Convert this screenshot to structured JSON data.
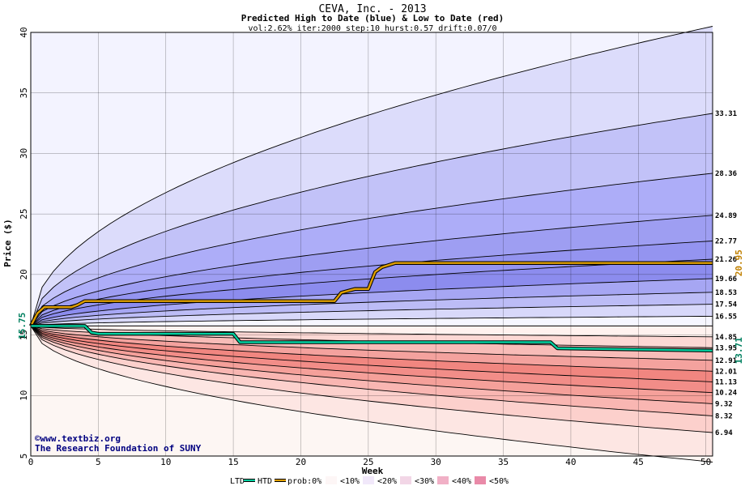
{
  "chart_data": {
    "type": "area",
    "title": "CEVA, Inc. - 2013",
    "subtitle": "Predicted High to Date (blue) &  Low to Date (red)",
    "params": "vol:2.62% iter:2000 step:10 hurst:0.57 drift:0.07/0",
    "xlabel": "Week",
    "ylabel": "Price ($)",
    "xlim": [
      0,
      50.5
    ],
    "ylim": [
      5,
      40
    ],
    "x_ticks": [
      0,
      5,
      10,
      15,
      20,
      25,
      30,
      35,
      40,
      45,
      50
    ],
    "y_ticks": [
      5,
      10,
      15,
      20,
      25,
      30,
      35,
      40
    ],
    "start_price": 15.75,
    "start_label": "15.75",
    "grid": true,
    "high_bands": [
      {
        "pct": "0%",
        "end_value": 40.5,
        "end_label": ""
      },
      {
        "pct": "10%",
        "end_value": 33.31,
        "end_label": "33.31"
      },
      {
        "pct": "20%",
        "end_value": 28.36,
        "end_label": "28.36"
      },
      {
        "pct": "30%",
        "end_value": 24.89,
        "end_label": "24.89"
      },
      {
        "pct": "40%",
        "end_value": 22.77,
        "end_label": "22.77"
      },
      {
        "pct": "50%",
        "end_value": 21.26,
        "end_label": "21.26"
      },
      {
        "pct": "60%",
        "end_value": 19.66,
        "end_label": "19.66"
      },
      {
        "pct": "70%",
        "end_value": 18.53,
        "end_label": "18.53"
      },
      {
        "pct": "80%",
        "end_value": 17.54,
        "end_label": "17.54"
      },
      {
        "pct": "90%",
        "end_value": 16.55,
        "end_label": "16.55"
      }
    ],
    "low_bands": [
      {
        "pct": "90%",
        "end_value": 14.85,
        "end_label": "14.85"
      },
      {
        "pct": "80%",
        "end_value": 13.95,
        "end_label": "13.95"
      },
      {
        "pct": "70%",
        "end_value": 12.91,
        "end_label": "12.91"
      },
      {
        "pct": "60%",
        "end_value": 12.01,
        "end_label": "12.01"
      },
      {
        "pct": "50%",
        "end_value": 11.13,
        "end_label": "11.13"
      },
      {
        "pct": "40%",
        "end_value": 10.24,
        "end_label": "10.24"
      },
      {
        "pct": "30%",
        "end_value": 9.32,
        "end_label": "9.32"
      },
      {
        "pct": "20%",
        "end_value": 8.32,
        "end_label": "8.32"
      },
      {
        "pct": "10%",
        "end_value": 6.94,
        "end_label": "6.94"
      },
      {
        "pct": "0%",
        "end_value": 4.5,
        "end_label": ""
      }
    ],
    "htd_series": {
      "name": "HTD",
      "color": "#e0a000",
      "end_label": "20.95",
      "x": [
        0,
        0.5,
        1,
        1.5,
        3,
        3.5,
        4,
        22.5,
        23,
        24,
        25,
        25.5,
        26,
        27,
        50.5
      ],
      "y": [
        15.75,
        16.8,
        17.3,
        17.3,
        17.3,
        17.5,
        17.8,
        17.8,
        18.5,
        18.8,
        18.8,
        20.2,
        20.6,
        20.95,
        20.95
      ]
    },
    "ltd_series": {
      "name": "LTD",
      "color": "#00d0a0",
      "end_label": "13.71",
      "x": [
        0,
        4,
        4.5,
        5,
        15,
        15.5,
        38.5,
        39,
        50.5
      ],
      "y": [
        15.75,
        15.75,
        15.2,
        15.1,
        15.1,
        14.4,
        14.4,
        13.9,
        13.71
      ]
    }
  },
  "band_colors": {
    "high": [
      "#f3f3ff",
      "#dcdcfb",
      "#c2c2f8",
      "#adadf8",
      "#9e9ef2",
      "#9494f0",
      "#8c8cee",
      "#a6a6f3",
      "#bcbcf6",
      "#d8d8fa",
      "#f6f6ff"
    ],
    "low": [
      "#fdf6f3",
      "#fde6e3",
      "#fcd0cc",
      "#f9b6b2",
      "#f5a09a",
      "#f28d88",
      "#f18680",
      "#f4a29e",
      "#f8bcb8",
      "#fcd8d4",
      "#fff2ef"
    ]
  },
  "credit": {
    "line1": "©www.textbiz.org",
    "line2": "The Research Foundation of SUNY"
  },
  "legend": {
    "ltd": "LTD",
    "htd": "HTD",
    "prob": "prob:0%",
    "items": [
      "<10%",
      "<20%",
      "<30%",
      "<40%",
      "<50%"
    ],
    "colors": [
      "#fdf6f6",
      "#f1e8fa",
      "#f2d6e6",
      "#f1b0c6",
      "#e98aa8"
    ]
  }
}
